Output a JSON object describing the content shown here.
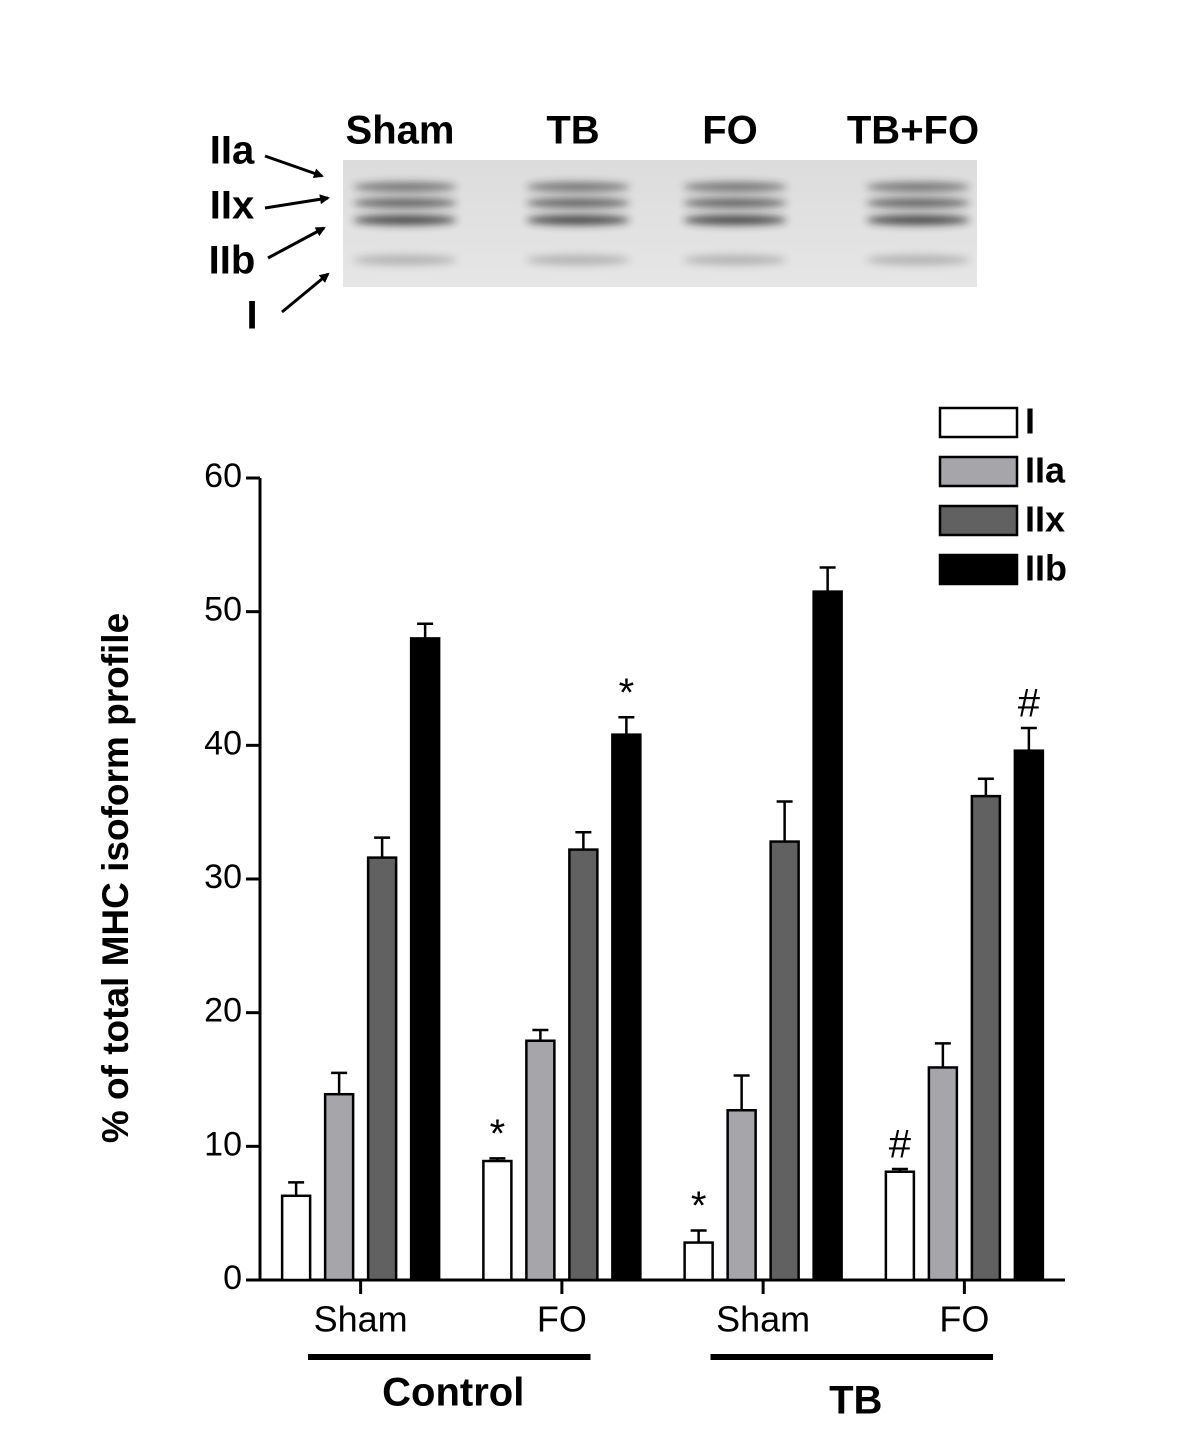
{
  "gel": {
    "lanes": [
      "Sham",
      "TB",
      "FO",
      "TB+FO"
    ],
    "isoforms": [
      "IIa",
      "IIx",
      "IIb",
      "I"
    ]
  },
  "chart_data": {
    "type": "bar",
    "y_label": "% of total MHC isoform profile",
    "categories": [
      "Sham",
      "FO",
      "Sham",
      "FO"
    ],
    "groups": [
      "Control",
      "TB"
    ],
    "series": [
      {
        "name": "I",
        "color": "#ffffff",
        "values": [
          6.3,
          8.9,
          2.8,
          8.1
        ],
        "errors": [
          1.0,
          0.2,
          0.9,
          0.2
        ]
      },
      {
        "name": "IIa",
        "color": "#a6a6aa",
        "values": [
          13.9,
          17.9,
          12.7,
          15.9
        ],
        "errors": [
          1.6,
          0.8,
          2.6,
          1.8
        ]
      },
      {
        "name": "IIx",
        "color": "#616161",
        "values": [
          31.6,
          32.2,
          32.8,
          36.2
        ],
        "errors": [
          1.5,
          1.3,
          3.0,
          1.3
        ]
      },
      {
        "name": "IIb",
        "color": "#000000",
        "values": [
          48.0,
          40.8,
          51.5,
          39.6
        ],
        "errors": [
          1.1,
          1.3,
          1.8,
          1.7
        ]
      }
    ],
    "annotations": [
      {
        "text": "*",
        "series": 0,
        "category": 1
      },
      {
        "text": "*",
        "series": 3,
        "category": 1
      },
      {
        "text": "*",
        "series": 0,
        "category": 2
      },
      {
        "text": "#",
        "series": 0,
        "category": 3
      },
      {
        "text": "#",
        "series": 3,
        "category": 3
      }
    ],
    "ylim": [
      0,
      60
    ],
    "yticks": [
      0,
      10,
      20,
      30,
      40,
      50,
      60
    ],
    "legend": "top-right"
  }
}
